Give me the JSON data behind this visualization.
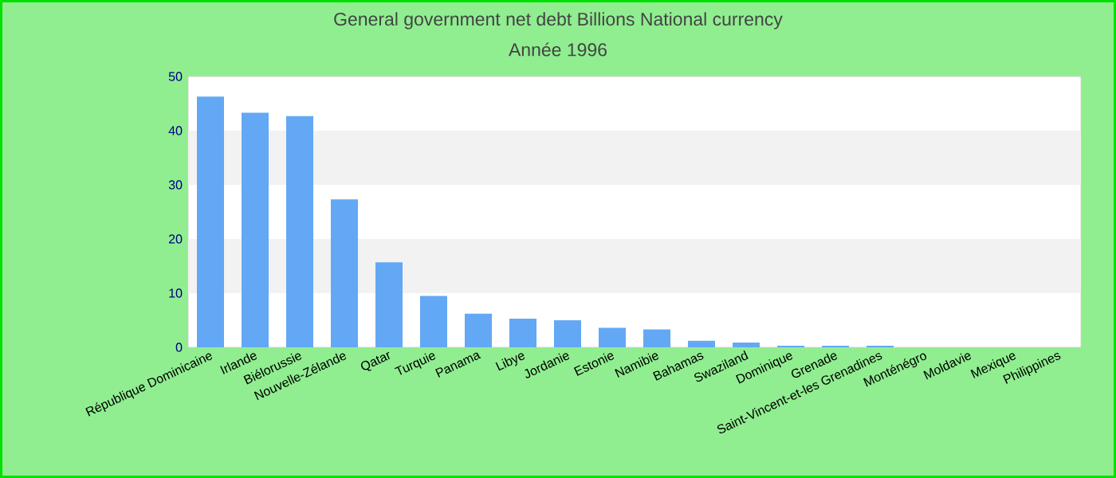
{
  "chart_data": {
    "type": "bar",
    "title": "General government net debt Billions National currency",
    "subtitle": "Année 1996",
    "categories": [
      "République Dominicaine",
      "Irlande",
      "Biélorussie",
      "Nouvelle-Zélande",
      "Qatar",
      "Turquie",
      "Panama",
      "Libye",
      "Jordanie",
      "Estonie",
      "Namibie",
      "Bahamas",
      "Swaziland",
      "Dominique",
      "Grenade",
      "Saint-Vincent-et-les Grenadines",
      "Monténégro",
      "Moldavie",
      "Mexique",
      "Philippines"
    ],
    "values": [
      46.3,
      43.3,
      42.7,
      27.3,
      15.7,
      9.5,
      6.2,
      5.3,
      5.0,
      3.6,
      3.3,
      1.2,
      0.9,
      0.3,
      0.3,
      0.3,
      null,
      null,
      null,
      null
    ],
    "color": "#63a8f4",
    "ylim": [
      0,
      50
    ],
    "yticks": [
      0,
      10,
      20,
      30,
      40,
      50
    ],
    "bands": [
      {
        "axis": "y",
        "from": 10,
        "to": 20,
        "color": "#f2f2f2"
      },
      {
        "axis": "y",
        "from": 30,
        "to": 40,
        "color": "#f2f2f2"
      }
    ],
    "grid": false
  }
}
